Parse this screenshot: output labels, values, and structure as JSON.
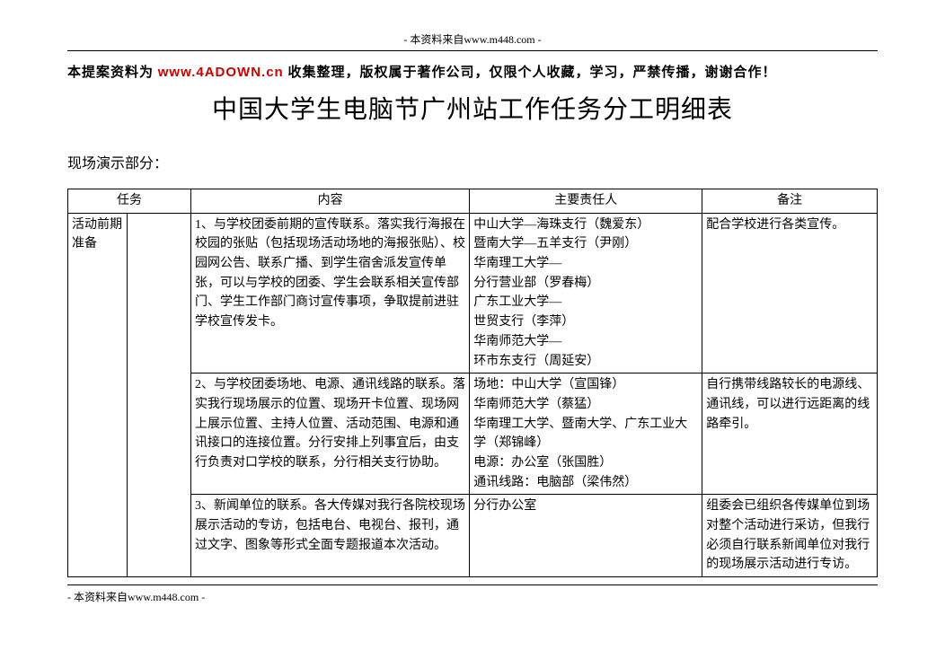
{
  "header": {
    "source_line": "- 本资料来自www.m448.com -"
  },
  "notice": {
    "prefix": "本提案资料为 ",
    "url": "www.4ADOWN.cn",
    "suffix": " 收集整理，版权属于著作公司，仅限个人收藏，学习，严禁传播，谢谢合作！"
  },
  "title": "中国大学生电脑节广州站工作任务分工明细表",
  "section_label": "现场演示部分：",
  "table": {
    "headers": {
      "task": "任务",
      "content": "内容",
      "person": "主要责任人",
      "note": "备注"
    },
    "rows": [
      {
        "task_a": "活动前期准备",
        "task_b": "",
        "content": "1、与学校团委前期的宣传联系。落实我行海报在校园的张贴（包括现场活动场地的海报张贴）、校园网公告、联系广播、到学生宿舍派发宣传单张，可以与学校的团委、学生会联系相关宣传部门、学生工作部门商讨宣传事项，争取提前进驻学校宣传发卡。",
        "person": "中山大学—海珠支行（魏爱东）\n暨南大学—五羊支行（尹刚）\n华南理工大学—\n分行营业部（罗春梅）\n广东工业大学—\n世贸支行（李萍）\n华南师范大学—\n环市东支行（周延安）",
        "note": "配合学校进行各类宣传。"
      },
      {
        "task_a": "",
        "task_b": "",
        "content": "2、与学校团委场地、电源、通讯线路的联系。落实我行现场展示的位置、现场开卡位置、现场网上展示位置、主持人位置、活动范围、电源和通讯接口的连接位置。分行安排上列事宜后，由支行负责对口学校的联系，分行相关支行协助。",
        "person": "场地：中山大学（宣国锋）\n华南师范大学（蔡猛）\n华南理工大学、暨南大学、广东工业大学（郑锦峰）\n电源：办公室（张国胜）\n通讯线路：电脑部（梁伟然）",
        "note": "自行携带线路较长的电源线、通讯线，可以进行远距离的线路牵引。"
      },
      {
        "task_a": "",
        "task_b": "",
        "content": "3、新闻单位的联系。各大传媒对我行各院校现场展示活动的专访，包括电台、电视台、报刊，通过文字、图象等形式全面专题报道本次活动。",
        "person": "分行办公室",
        "note": "组委会已组织各传媒单位到场对整个活动进行采访，但我行必须自行联系新闻单位对我行的现场展示活动进行专访。"
      }
    ],
    "col_widths": {
      "task_a": 62,
      "task_b": 66,
      "content": 290,
      "person": 242,
      "note": 182
    }
  },
  "footer": {
    "source_line": "- 本资料来自www.m448.com -"
  },
  "colors": {
    "text": "#000000",
    "url_red": "#cc0000",
    "border": "#000000",
    "background": "#ffffff"
  },
  "typography": {
    "body_family": "SimSun",
    "header_fontsize": 12,
    "notice_fontsize": 15,
    "title_fontsize": 28,
    "section_fontsize": 16,
    "cell_fontsize": 14,
    "line_height": 1.55
  }
}
